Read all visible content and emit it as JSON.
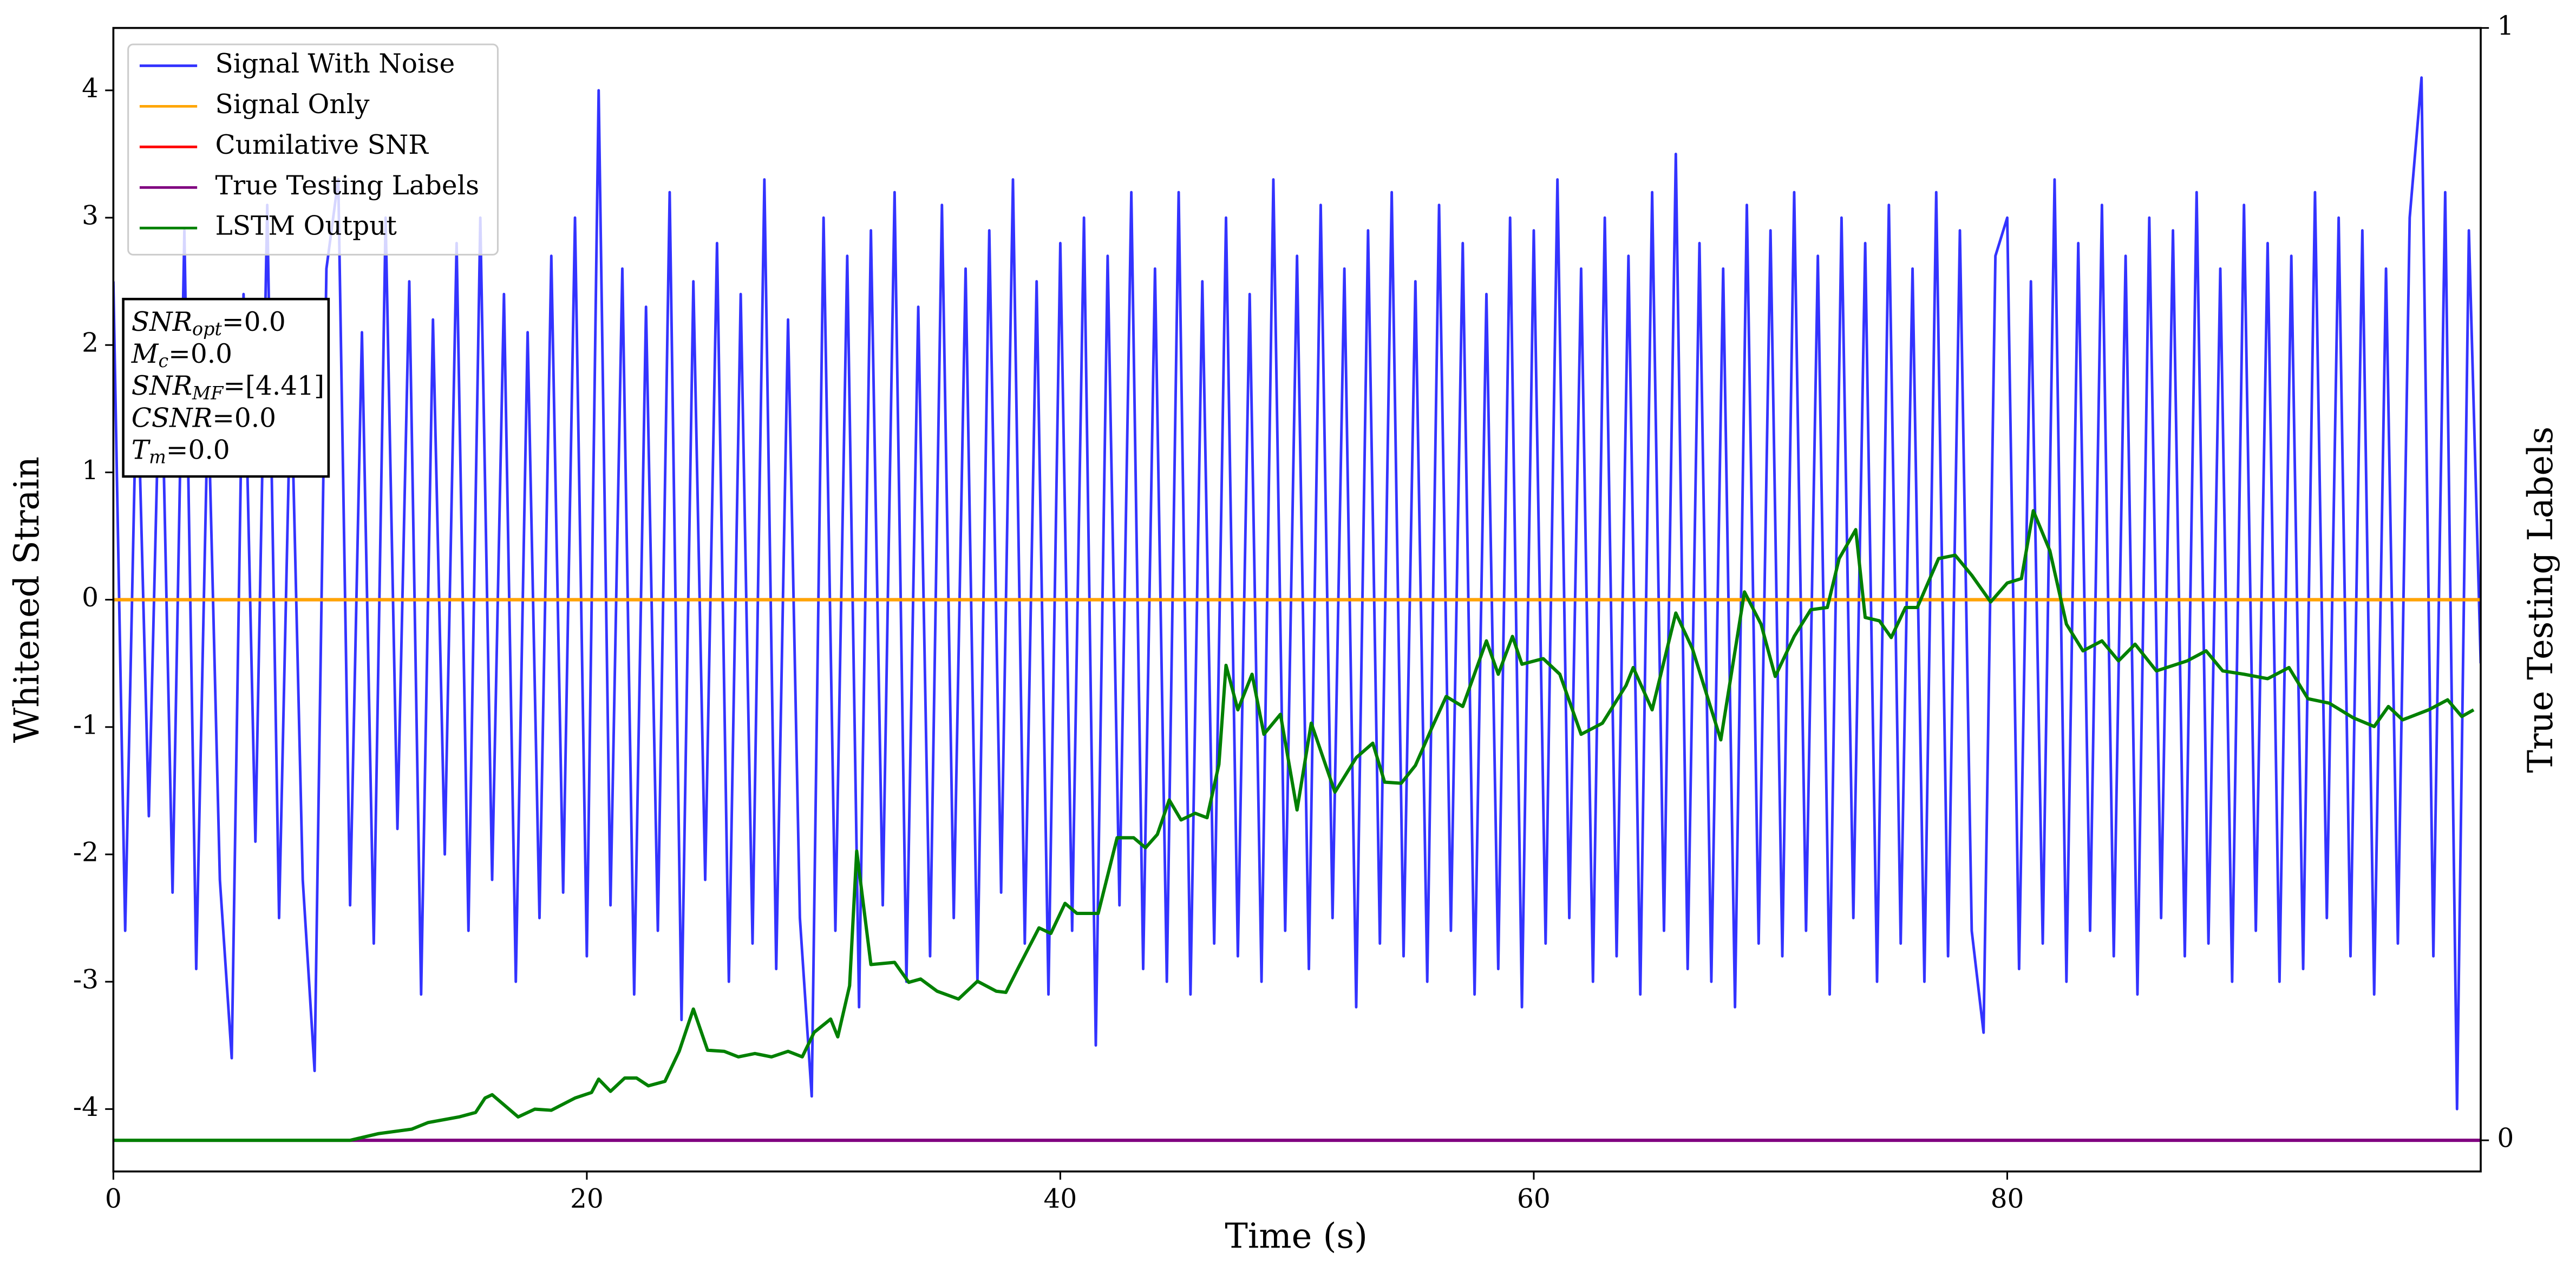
{
  "chart_data": {
    "type": "line",
    "xlabel": "Time (s)",
    "ylabel": "Whitened Strain",
    "y2label": "True Testing Labels",
    "xlim": [
      0,
      100
    ],
    "ylim": [
      -4.49,
      4.49
    ],
    "y2lim": [
      -0.028,
      1
    ],
    "xticks": [
      0,
      20,
      40,
      60,
      80
    ],
    "yticks": [
      -4,
      -3,
      -2,
      -1,
      0,
      1,
      2,
      3,
      4
    ],
    "y2ticks": [
      0,
      1
    ],
    "grid": false,
    "legend": "upper left",
    "annotations": [
      {
        "main": "SNR",
        "sub": "opt",
        "rest": "=0.0"
      },
      {
        "main": "M",
        "sub": "c",
        "rest": "=0.0"
      },
      {
        "main": "SNR",
        "sub": "MF",
        "rest": "=[4.41]"
      },
      {
        "main": "CSNR",
        "rest": "=0.0"
      },
      {
        "main": "T",
        "sub": "m",
        "rest": "=0.0"
      }
    ],
    "series": [
      {
        "name": "Signal With Noise",
        "color": "#3333ff",
        "x": [
          0,
          0.5,
          1,
          1.5,
          2,
          2.5,
          3,
          3.5,
          4,
          4.5,
          5,
          5.5,
          6,
          6.5,
          7,
          7.5,
          8,
          8.5,
          9,
          9.5,
          10,
          10.5,
          11,
          11.5,
          12,
          12.5,
          13,
          13.5,
          14,
          14.5,
          15,
          15.5,
          16,
          16.5,
          17,
          17.5,
          18,
          18.5,
          19,
          19.5,
          20,
          20.5,
          21,
          21.5,
          22,
          22.5,
          23,
          23.5,
          24,
          24.5,
          25,
          25.5,
          26,
          26.5,
          27,
          27.5,
          28,
          28.5,
          29,
          29.5,
          30,
          30.5,
          31,
          31.5,
          32,
          32.5,
          33,
          33.5,
          34,
          34.5,
          35,
          35.5,
          36,
          36.5,
          37,
          37.5,
          38,
          38.5,
          39,
          39.5,
          40,
          40.5,
          41,
          41.5,
          42,
          42.5,
          43,
          43.5,
          44,
          44.5,
          45,
          45.5,
          46,
          46.5,
          47,
          47.5,
          48,
          48.5,
          49,
          49.5,
          50,
          50.5,
          51,
          51.5,
          52,
          52.5,
          53,
          53.5,
          54,
          54.5,
          55,
          55.5,
          56,
          56.5,
          57,
          57.5,
          58,
          58.5,
          59,
          59.5,
          60,
          60.5,
          61,
          61.5,
          62,
          62.5,
          63,
          63.5,
          64,
          64.5,
          65,
          65.5,
          66,
          66.5,
          67,
          67.5,
          68,
          68.5,
          69,
          69.5,
          70,
          70.5,
          71,
          71.5,
          72,
          72.5,
          73,
          73.5,
          74,
          74.5,
          75,
          75.5,
          76,
          76.5,
          77,
          77.5,
          78,
          78.5,
          79,
          79.5,
          80,
          80.5,
          81,
          81.5,
          82,
          82.5,
          83,
          83.5,
          84,
          84.5,
          85,
          85.5,
          86,
          86.5,
          87,
          87.5,
          88,
          88.5,
          89,
          89.5,
          90,
          90.5,
          91,
          91.5,
          92,
          92.5,
          93,
          93.5,
          94,
          94.5,
          95,
          95.5,
          96,
          96.5,
          97,
          97.5,
          98,
          98.5,
          99,
          99.5,
          100
        ],
        "values": [
          2.5,
          -2.6,
          1.9,
          -1.7,
          2.2,
          -2.3,
          2.9,
          -2.9,
          1.6,
          -2.2,
          -3.6,
          2.4,
          -1.9,
          3.1,
          -2.5,
          1.8,
          -2.2,
          -3.7,
          2.6,
          3.3,
          -2.4,
          2.1,
          -2.7,
          3.0,
          -1.8,
          2.5,
          -3.1,
          2.2,
          -2.0,
          2.8,
          -2.6,
          3.0,
          -2.2,
          2.4,
          -3.0,
          2.1,
          -2.5,
          2.7,
          -2.3,
          3.0,
          -2.8,
          4.0,
          -2.4,
          2.6,
          -3.1,
          2.3,
          -2.6,
          3.2,
          -3.3,
          2.5,
          -2.2,
          2.8,
          -3.0,
          2.4,
          -2.7,
          3.3,
          -2.9,
          2.2,
          -2.5,
          -3.9,
          3.0,
          -2.6,
          2.7,
          -3.2,
          2.9,
          -2.4,
          3.2,
          -3.0,
          2.3,
          -2.8,
          3.1,
          -2.5,
          2.6,
          -3.0,
          2.9,
          -2.3,
          3.3,
          -2.7,
          2.5,
          -3.1,
          2.8,
          -2.6,
          3.0,
          -3.5,
          2.7,
          -2.4,
          3.2,
          -2.9,
          2.6,
          -3.0,
          3.2,
          -3.1,
          2.5,
          -2.7,
          3.0,
          -2.8,
          2.4,
          -3.0,
          3.3,
          -2.6,
          2.7,
          -2.9,
          3.1,
          -2.5,
          2.6,
          -3.2,
          2.9,
          -2.7,
          3.2,
          -2.8,
          2.5,
          -3.0,
          3.1,
          -2.6,
          2.8,
          -3.1,
          2.4,
          -2.9,
          3.0,
          -3.2,
          2.9,
          -2.7,
          3.3,
          -2.5,
          2.6,
          -3.0,
          3.0,
          -2.8,
          2.7,
          -3.1,
          3.2,
          -2.6,
          3.5,
          -2.9,
          2.8,
          -3.0,
          2.6,
          -3.2,
          3.1,
          -2.7,
          2.9,
          -2.8,
          3.2,
          -2.6,
          2.7,
          -3.1,
          3.0,
          -2.5,
          2.8,
          -3.0,
          3.1,
          -2.7,
          2.6,
          -3.0,
          3.2,
          -2.8,
          2.9,
          -2.6,
          -3.4,
          2.7,
          3.0,
          -2.9,
          2.5,
          -2.7,
          3.3,
          -3.0,
          2.8,
          -2.6,
          3.1,
          -2.8,
          2.7,
          -3.1,
          3.0,
          -2.5,
          2.9,
          -2.8,
          3.2,
          -2.7,
          2.6,
          -3.0,
          3.1,
          -2.6,
          2.8,
          -3.0,
          2.7,
          -2.9,
          3.2,
          -2.5,
          3.0,
          -2.8,
          2.9,
          -3.1,
          2.6,
          -2.7,
          3.0,
          4.1,
          -2.8,
          3.2,
          -4.0,
          2.9,
          -0.5
        ]
      },
      {
        "name": "Signal Only",
        "color": "#ffa500",
        "x": [
          0,
          100
        ],
        "values": [
          0,
          0
        ]
      },
      {
        "name": "Cumilative SNR",
        "color": "#ff0000",
        "x": [
          0,
          100
        ],
        "values": [
          0,
          0
        ]
      },
      {
        "name": "True Testing Labels",
        "color": "#800080",
        "axis": "y2",
        "x": [
          0,
          100
        ],
        "values": [
          0,
          0
        ]
      },
      {
        "name": "LSTM Output",
        "color": "#008000",
        "axis": "y2",
        "x": [
          0,
          10,
          11.2,
          12.6,
          13.3,
          14.6,
          15.3,
          15.7,
          16,
          17.1,
          17.8,
          18.5,
          19.5,
          20.2,
          20.5,
          21,
          21.6,
          22.1,
          22.6,
          23.3,
          23.9,
          24.5,
          25.1,
          25.8,
          26.4,
          27.1,
          27.8,
          28.5,
          29.1,
          29.6,
          30.3,
          30.6,
          31.1,
          31.4,
          32,
          33,
          33.6,
          34.1,
          34.8,
          35.7,
          36.5,
          37.3,
          37.7,
          38.2,
          39.1,
          39.6,
          40.2,
          40.7,
          41.6,
          42.4,
          43.1,
          43.6,
          44.1,
          44.6,
          45.1,
          45.7,
          46.2,
          46.7,
          47,
          47.5,
          48.1,
          48.6,
          49.3,
          50,
          50.6,
          51.6,
          52.5,
          53.2,
          53.7,
          54.4,
          55,
          55.7,
          56.3,
          57,
          58,
          58.5,
          59.1,
          59.5,
          60.4,
          61.1,
          62,
          62.9,
          63.9,
          64.2,
          65,
          66,
          66.7,
          67.9,
          68.9,
          69.6,
          70.2,
          71,
          71.7,
          72.4,
          72.9,
          73.6,
          74,
          74.6,
          75.1,
          75.7,
          76.2,
          77.1,
          77.8,
          78.5,
          79.3,
          80,
          80.6,
          81.1,
          81.8,
          82.5,
          83.2,
          84,
          84.7,
          85.4,
          86.3,
          87.6,
          88.4,
          89.1,
          90,
          91,
          91.9,
          92.7,
          93.6,
          94.6,
          95.5,
          96.1,
          96.7,
          97.8,
          98.6,
          99.2,
          99.7
        ],
        "values": [
          0,
          0,
          0.006,
          0.01,
          0.016,
          0.021,
          0.025,
          0.038,
          0.041,
          0.021,
          0.028,
          0.027,
          0.038,
          0.043,
          0.055,
          0.044,
          0.056,
          0.056,
          0.049,
          0.053,
          0.08,
          0.118,
          0.081,
          0.08,
          0.075,
          0.078,
          0.075,
          0.08,
          0.075,
          0.097,
          0.109,
          0.093,
          0.139,
          0.26,
          0.158,
          0.16,
          0.142,
          0.145,
          0.134,
          0.127,
          0.143,
          0.134,
          0.133,
          0.154,
          0.191,
          0.186,
          0.213,
          0.204,
          0.204,
          0.272,
          0.272,
          0.263,
          0.275,
          0.306,
          0.288,
          0.294,
          0.29,
          0.338,
          0.427,
          0.387,
          0.419,
          0.365,
          0.383,
          0.297,
          0.375,
          0.313,
          0.344,
          0.357,
          0.322,
          0.321,
          0.337,
          0.371,
          0.399,
          0.39,
          0.449,
          0.419,
          0.453,
          0.428,
          0.433,
          0.419,
          0.365,
          0.375,
          0.409,
          0.425,
          0.387,
          0.474,
          0.442,
          0.36,
          0.493,
          0.464,
          0.417,
          0.453,
          0.477,
          0.479,
          0.523,
          0.549,
          0.47,
          0.467,
          0.452,
          0.479,
          0.479,
          0.523,
          0.526,
          0.508,
          0.484,
          0.501,
          0.505,
          0.566,
          0.53,
          0.464,
          0.44,
          0.449,
          0.431,
          0.446,
          0.422,
          0.431,
          0.44,
          0.422,
          0.419,
          0.415,
          0.425,
          0.397,
          0.393,
          0.38,
          0.372,
          0.39,
          0.378,
          0.387,
          0.396,
          0.381,
          0.387
        ]
      }
    ]
  }
}
